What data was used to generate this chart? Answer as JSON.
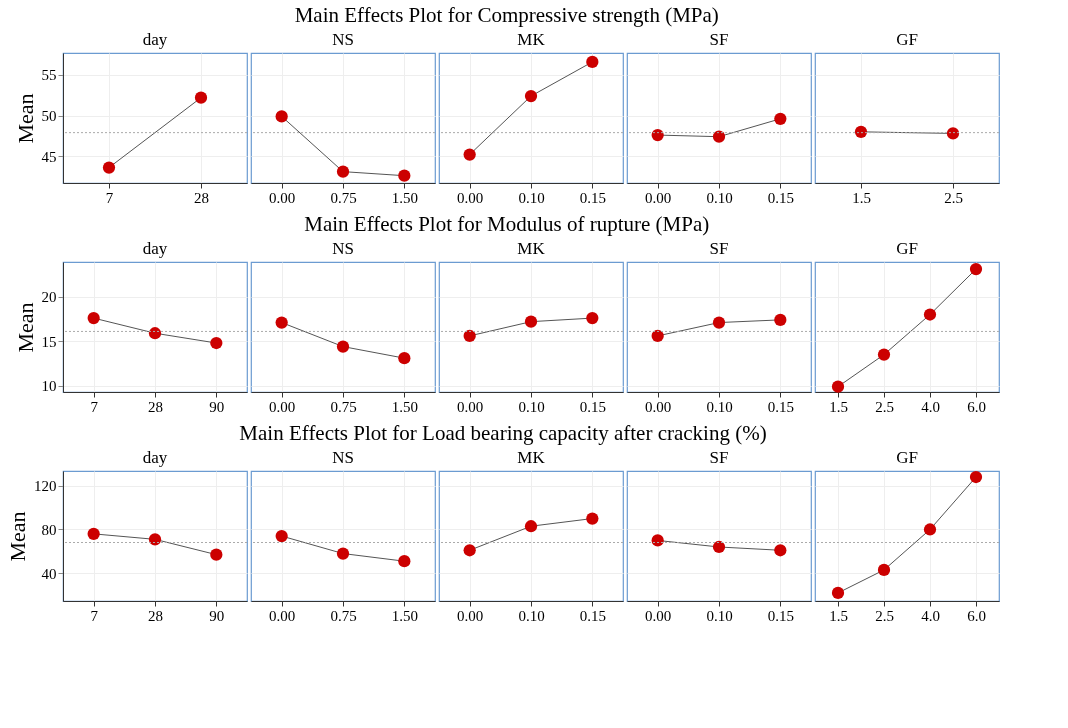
{
  "chart_data": [
    {
      "type": "line",
      "title": "day",
      "categories": [
        "7",
        "28"
      ],
      "series": [
        {
          "color": "#cc0000",
          "values": [
            43.6,
            52.2
          ]
        }
      ],
      "ylim": [
        41.7,
        57.7
      ],
      "yticks": [
        45,
        50,
        55
      ],
      "ylabel": "Mean",
      "marker": "circle",
      "grid": true,
      "ref_lines": [
        {
          "axis": "y",
          "value": 47.9,
          "line_style": "dotted"
        }
      ]
    },
    {
      "type": "line",
      "title": "NS",
      "categories": [
        "0.00",
        "0.75",
        "1.50"
      ],
      "series": [
        {
          "color": "#cc0000",
          "values": [
            49.9,
            43.1,
            42.6
          ]
        }
      ],
      "ylim": [
        41.7,
        57.7
      ],
      "yticks": [
        45,
        50,
        55
      ],
      "tick_labels": "x",
      "marker": "circle",
      "grid": true,
      "ref_lines": [
        {
          "axis": "y",
          "value": 47.9,
          "line_style": "dotted"
        }
      ]
    },
    {
      "type": "line",
      "subtitle": "Main Effects Plot for Compressive strength (MPa)",
      "title": "MK",
      "categories": [
        "0.00",
        "0.10",
        "0.15"
      ],
      "series": [
        {
          "color": "#cc0000",
          "values": [
            45.2,
            52.4,
            56.6
          ]
        }
      ],
      "ylim": [
        41.7,
        57.7
      ],
      "yticks": [
        45,
        50,
        55
      ],
      "tick_labels": "x",
      "marker": "circle",
      "grid": true,
      "ref_lines": [
        {
          "axis": "y",
          "value": 47.9,
          "line_style": "dotted"
        }
      ]
    },
    {
      "type": "line",
      "title": "SF",
      "categories": [
        "0.00",
        "0.10",
        "0.15"
      ],
      "series": [
        {
          "color": "#cc0000",
          "values": [
            47.6,
            47.4,
            49.6
          ]
        }
      ],
      "ylim": [
        41.7,
        57.7
      ],
      "yticks": [
        45,
        50,
        55
      ],
      "tick_labels": "x",
      "marker": "circle",
      "grid": true,
      "ref_lines": [
        {
          "axis": "y",
          "value": 47.9,
          "line_style": "dotted"
        }
      ]
    },
    {
      "type": "line",
      "title": "GF",
      "categories": [
        "1.5",
        "2.5"
      ],
      "series": [
        {
          "color": "#cc0000",
          "values": [
            48.0,
            47.8
          ]
        }
      ],
      "ylim": [
        41.7,
        57.7
      ],
      "yticks": [
        45,
        50,
        55
      ],
      "tick_labels": "x",
      "marker": "circle",
      "grid": true,
      "ref_lines": [
        {
          "axis": "y",
          "value": 47.9,
          "line_style": "dotted"
        }
      ]
    },
    {
      "type": "line",
      "title": "day",
      "categories": [
        "7",
        "28",
        "90"
      ],
      "series": [
        {
          "color": "#cc0000",
          "values": [
            17.6,
            15.9,
            14.8
          ]
        }
      ],
      "ylim": [
        9.3,
        23.9
      ],
      "yticks": [
        10,
        15,
        20
      ],
      "ylabel": "Mean",
      "marker": "circle",
      "grid": true,
      "ref_lines": [
        {
          "axis": "y",
          "value": 16.1,
          "line_style": "dotted"
        }
      ]
    },
    {
      "type": "line",
      "title": "NS",
      "categories": [
        "0.00",
        "0.75",
        "1.50"
      ],
      "series": [
        {
          "color": "#cc0000",
          "values": [
            17.1,
            14.4,
            13.1
          ]
        }
      ],
      "ylim": [
        9.3,
        23.9
      ],
      "yticks": [
        10,
        15,
        20
      ],
      "tick_labels": "x",
      "marker": "circle",
      "grid": true,
      "ref_lines": [
        {
          "axis": "y",
          "value": 16.1,
          "line_style": "dotted"
        }
      ]
    },
    {
      "type": "line",
      "subtitle": "Main Effects Plot for Modulus of rupture (MPa)",
      "title": "MK",
      "categories": [
        "0.00",
        "0.10",
        "0.15"
      ],
      "series": [
        {
          "color": "#cc0000",
          "values": [
            15.6,
            17.2,
            17.6
          ]
        }
      ],
      "ylim": [
        9.3,
        23.9
      ],
      "yticks": [
        10,
        15,
        20
      ],
      "tick_labels": "x",
      "marker": "circle",
      "grid": true,
      "ref_lines": [
        {
          "axis": "y",
          "value": 16.1,
          "line_style": "dotted"
        }
      ]
    },
    {
      "type": "line",
      "title": "SF",
      "categories": [
        "0.00",
        "0.10",
        "0.15"
      ],
      "series": [
        {
          "color": "#cc0000",
          "values": [
            15.6,
            17.1,
            17.4
          ]
        }
      ],
      "ylim": [
        9.3,
        23.9
      ],
      "yticks": [
        10,
        15,
        20
      ],
      "tick_labels": "x",
      "marker": "circle",
      "grid": true,
      "ref_lines": [
        {
          "axis": "y",
          "value": 16.1,
          "line_style": "dotted"
        }
      ]
    },
    {
      "type": "line",
      "title": "GF",
      "categories": [
        "1.5",
        "2.5",
        "4.0",
        "6.0"
      ],
      "series": [
        {
          "color": "#cc0000",
          "values": [
            9.9,
            13.5,
            18.0,
            23.1
          ]
        }
      ],
      "ylim": [
        9.3,
        23.9
      ],
      "yticks": [
        10,
        15,
        20
      ],
      "tick_labels": "x",
      "marker": "circle",
      "grid": true,
      "ref_lines": [
        {
          "axis": "y",
          "value": 16.1,
          "line_style": "dotted"
        }
      ]
    },
    {
      "type": "line",
      "title": "day",
      "categories": [
        "7",
        "28",
        "90"
      ],
      "series": [
        {
          "color": "#cc0000",
          "values": [
            76,
            71,
            57
          ]
        }
      ],
      "ylim": [
        14.6,
        133.5
      ],
      "yticks": [
        40,
        80,
        120
      ],
      "ylabel": "Mean",
      "marker": "circle",
      "grid": true,
      "ref_lines": [
        {
          "axis": "y",
          "value": 68.1,
          "line_style": "dotted"
        }
      ]
    },
    {
      "type": "line",
      "title": "NS",
      "categories": [
        "0.00",
        "0.75",
        "1.50"
      ],
      "series": [
        {
          "color": "#cc0000",
          "values": [
            74,
            58,
            51
          ]
        }
      ],
      "ylim": [
        14.6,
        133.5
      ],
      "yticks": [
        40,
        80,
        120
      ],
      "tick_labels": "x",
      "marker": "circle",
      "grid": true,
      "ref_lines": [
        {
          "axis": "y",
          "value": 68.1,
          "line_style": "dotted"
        }
      ]
    },
    {
      "type": "line",
      "subtitle": "Main Effects Plot for Load bearing capacity after cracking (%)",
      "title": "MK",
      "categories": [
        "0.00",
        "0.10",
        "0.15"
      ],
      "series": [
        {
          "color": "#cc0000",
          "values": [
            61,
            83,
            90
          ]
        }
      ],
      "ylim": [
        14.6,
        133.5
      ],
      "yticks": [
        40,
        80,
        120
      ],
      "tick_labels": "x",
      "marker": "circle",
      "grid": true,
      "ref_lines": [
        {
          "axis": "y",
          "value": 68.1,
          "line_style": "dotted"
        }
      ]
    },
    {
      "type": "line",
      "title": "SF",
      "categories": [
        "0.00",
        "0.10",
        "0.15"
      ],
      "series": [
        {
          "color": "#cc0000",
          "values": [
            70,
            64,
            61
          ]
        }
      ],
      "ylim": [
        14.6,
        133.5
      ],
      "yticks": [
        40,
        80,
        120
      ],
      "tick_labels": "x",
      "marker": "circle",
      "grid": true,
      "ref_lines": [
        {
          "axis": "y",
          "value": 68.1,
          "line_style": "dotted"
        }
      ]
    },
    {
      "type": "line",
      "title": "GF",
      "categories": [
        "1.5",
        "2.5",
        "4.0",
        "6.0"
      ],
      "series": [
        {
          "color": "#cc0000",
          "values": [
            22,
            43,
            80,
            128
          ]
        }
      ],
      "ylim": [
        14.6,
        133.5
      ],
      "yticks": [
        40,
        80,
        120
      ],
      "tick_labels": "x",
      "marker": "circle",
      "grid": true,
      "ref_lines": [
        {
          "axis": "y",
          "value": 68.1,
          "line_style": "dotted"
        }
      ]
    }
  ]
}
